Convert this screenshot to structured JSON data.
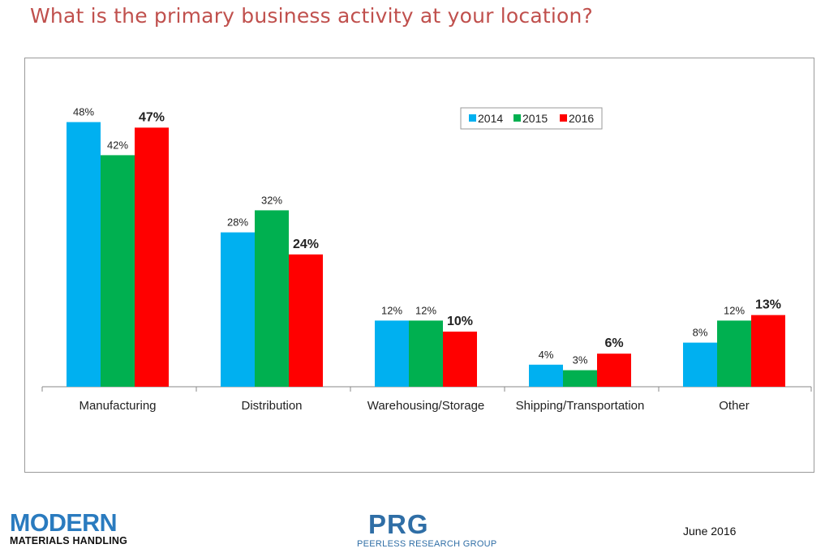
{
  "title": "What is the primary business activity at your location?",
  "chart_data": {
    "type": "bar",
    "categories": [
      "Manufacturing",
      "Distribution",
      "Warehousing/Storage",
      "Shipping/Transportation",
      "Other"
    ],
    "series": [
      {
        "name": "2014",
        "color": "#00b0f0",
        "values": [
          48,
          28,
          12,
          4,
          8
        ],
        "labels": [
          "48%",
          "28%",
          "12%",
          "4%",
          "8%"
        ],
        "label_bold": false
      },
      {
        "name": "2015",
        "color": "#00b050",
        "values": [
          42,
          32,
          12,
          3,
          12
        ],
        "labels": [
          "42%",
          "32%",
          "12%",
          "3%",
          "12%"
        ],
        "label_bold": false
      },
      {
        "name": "2016",
        "color": "#ff0000",
        "values": [
          47,
          24,
          10,
          6,
          13
        ],
        "labels": [
          "47%",
          "24%",
          "10%",
          "6%",
          "13%"
        ],
        "label_bold": true
      }
    ],
    "ylim": [
      0,
      50
    ],
    "grid": false,
    "legend_position": "top-right"
  },
  "footer": {
    "logo_left_main": "MODERN",
    "logo_left_sub": "MATERIALS HANDLING",
    "logo_center_main": "PRG",
    "logo_center_sub": "PEERLESS RESEARCH GROUP",
    "date": "June 2016"
  }
}
